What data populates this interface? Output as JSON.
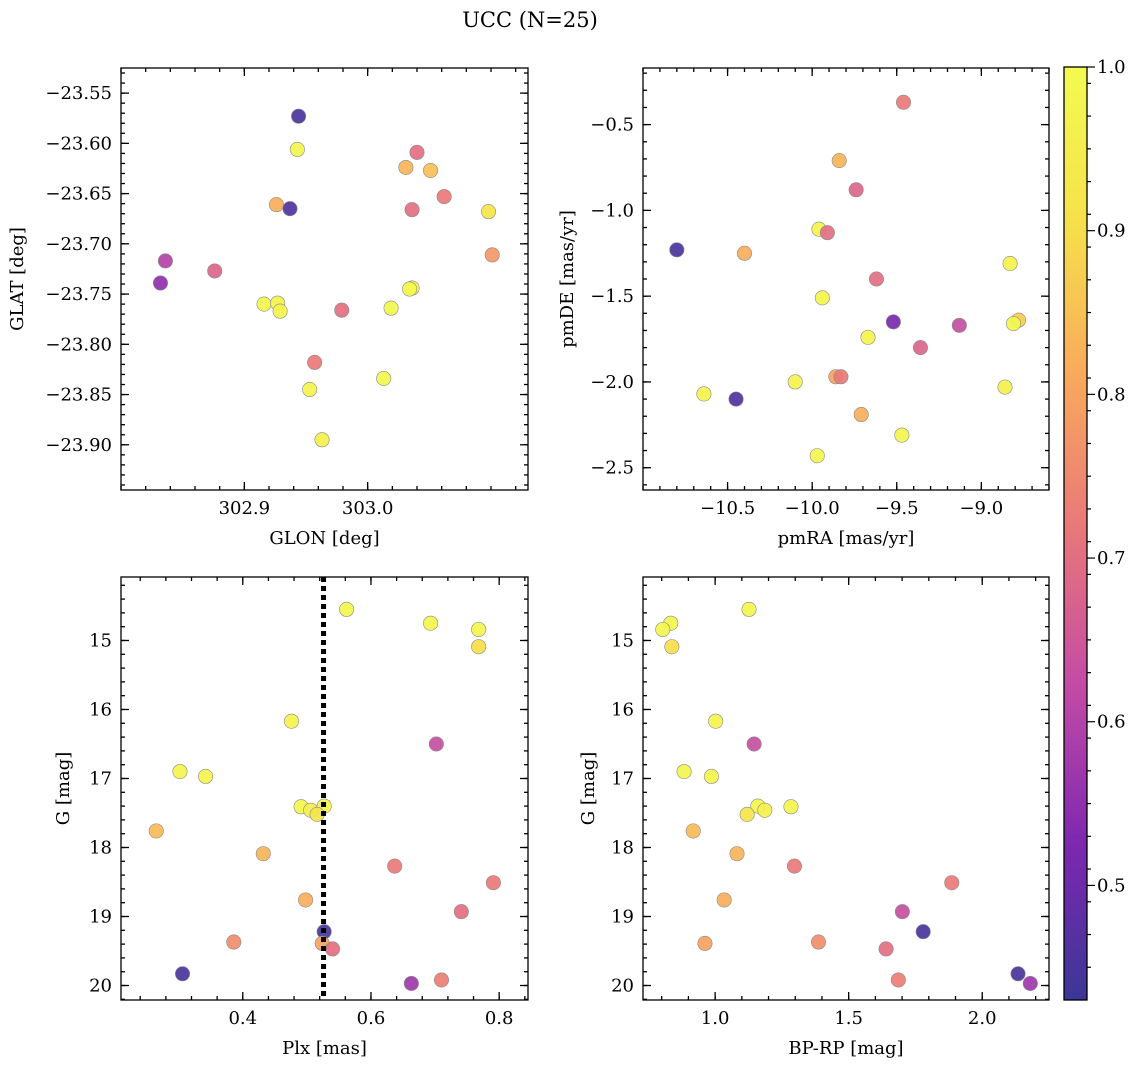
{
  "figure": {
    "title": "UCC (N=25)",
    "colorbar": {
      "cmap": "plasma",
      "vmin": 0.43,
      "vmax": 1.0,
      "ticks": [
        "0.5",
        "0.6",
        "0.7",
        "0.8",
        "0.9",
        "1.0"
      ],
      "colors": [
        "#3b3796",
        "#7d27b0",
        "#c24aa6",
        "#e8767a",
        "#f9a85d",
        "#f5e14a",
        "#f3fb4f"
      ]
    }
  },
  "chart_data": [
    {
      "type": "scatter",
      "xlabel": "GLON [deg]",
      "ylabel": "GLAT [deg]",
      "xlim": [
        302.8,
        303.13
      ],
      "ylim": [
        -23.945,
        -23.525
      ],
      "y_inverted": false,
      "xticks": [
        302.9,
        303.0
      ],
      "xtick_labels": [
        "302.9",
        "303.0"
      ],
      "yticks": [
        -23.55,
        -23.6,
        -23.65,
        -23.7,
        -23.75,
        -23.8,
        -23.85,
        -23.9
      ],
      "ytick_labels": [
        "−23.55",
        "−23.60",
        "−23.65",
        "−23.70",
        "−23.75",
        "−23.80",
        "−23.85",
        "−23.90"
      ],
      "points": [
        {
          "x": 302.944,
          "y": -23.573,
          "c": 0.45
        },
        {
          "x": 302.943,
          "y": -23.606,
          "c": 0.98
        },
        {
          "x": 303.04,
          "y": -23.609,
          "c": 0.7
        },
        {
          "x": 303.031,
          "y": -23.624,
          "c": 0.83
        },
        {
          "x": 303.051,
          "y": -23.627,
          "c": 0.85
        },
        {
          "x": 303.062,
          "y": -23.653,
          "c": 0.72
        },
        {
          "x": 302.926,
          "y": -23.661,
          "c": 0.82
        },
        {
          "x": 302.937,
          "y": -23.665,
          "c": 0.46
        },
        {
          "x": 303.036,
          "y": -23.666,
          "c": 0.7
        },
        {
          "x": 303.098,
          "y": -23.668,
          "c": 0.92
        },
        {
          "x": 303.101,
          "y": -23.711,
          "c": 0.78
        },
        {
          "x": 302.836,
          "y": -23.717,
          "c": 0.6
        },
        {
          "x": 302.876,
          "y": -23.727,
          "c": 0.68
        },
        {
          "x": 302.832,
          "y": -23.739,
          "c": 0.55
        },
        {
          "x": 303.036,
          "y": -23.744,
          "c": 0.97
        },
        {
          "x": 303.034,
          "y": -23.745,
          "c": 0.99
        },
        {
          "x": 302.916,
          "y": -23.76,
          "c": 0.98
        },
        {
          "x": 302.927,
          "y": -23.759,
          "c": 0.97
        },
        {
          "x": 302.929,
          "y": -23.767,
          "c": 0.97
        },
        {
          "x": 303.019,
          "y": -23.764,
          "c": 0.98
        },
        {
          "x": 302.979,
          "y": -23.766,
          "c": 0.7
        },
        {
          "x": 302.957,
          "y": -23.818,
          "c": 0.72
        },
        {
          "x": 302.953,
          "y": -23.845,
          "c": 0.97
        },
        {
          "x": 303.013,
          "y": -23.834,
          "c": 0.98
        },
        {
          "x": 302.963,
          "y": -23.895,
          "c": 0.96
        }
      ]
    },
    {
      "type": "scatter",
      "xlabel": "pmRA [mas/yr]",
      "ylabel": "pmDE [mas/yr]",
      "xlim": [
        -11.0,
        -8.6
      ],
      "ylim": [
        -2.63,
        -0.17
      ],
      "y_inverted": false,
      "xticks": [
        -10.5,
        -10.0,
        -9.5,
        -9.0
      ],
      "xtick_labels": [
        "−10.5",
        "−10.0",
        "−9.5",
        "−9.0"
      ],
      "yticks": [
        -2.5,
        -2.0,
        -1.5,
        -1.0,
        -0.5
      ],
      "ytick_labels": [
        "−2.5",
        "−2.0",
        "−1.5",
        "−1.0",
        "−0.5"
      ],
      "points": [
        {
          "x": -9.46,
          "y": -0.37,
          "c": 0.72
        },
        {
          "x": -9.84,
          "y": -0.71,
          "c": 0.83
        },
        {
          "x": -9.74,
          "y": -0.88,
          "c": 0.68
        },
        {
          "x": -9.96,
          "y": -1.11,
          "c": 0.97
        },
        {
          "x": -9.91,
          "y": -1.13,
          "c": 0.7
        },
        {
          "x": -10.8,
          "y": -1.23,
          "c": 0.45
        },
        {
          "x": -10.4,
          "y": -1.25,
          "c": 0.82
        },
        {
          "x": -8.83,
          "y": -1.31,
          "c": 0.97
        },
        {
          "x": -9.62,
          "y": -1.4,
          "c": 0.7
        },
        {
          "x": -9.94,
          "y": -1.51,
          "c": 0.98
        },
        {
          "x": -9.52,
          "y": -1.65,
          "c": 0.52
        },
        {
          "x": -9.13,
          "y": -1.67,
          "c": 0.63
        },
        {
          "x": -8.78,
          "y": -1.64,
          "c": 0.87
        },
        {
          "x": -8.81,
          "y": -1.66,
          "c": 0.98
        },
        {
          "x": -9.67,
          "y": -1.74,
          "c": 0.97
        },
        {
          "x": -9.36,
          "y": -1.8,
          "c": 0.68
        },
        {
          "x": -9.86,
          "y": -1.97,
          "c": 0.8
        },
        {
          "x": -9.83,
          "y": -1.97,
          "c": 0.72
        },
        {
          "x": -10.1,
          "y": -2.0,
          "c": 0.97
        },
        {
          "x": -8.86,
          "y": -2.03,
          "c": 0.96
        },
        {
          "x": -10.64,
          "y": -2.07,
          "c": 0.97
        },
        {
          "x": -10.45,
          "y": -2.1,
          "c": 0.46
        },
        {
          "x": -9.71,
          "y": -2.19,
          "c": 0.82
        },
        {
          "x": -9.47,
          "y": -2.31,
          "c": 0.98
        },
        {
          "x": -9.97,
          "y": -2.43,
          "c": 0.98
        }
      ]
    },
    {
      "type": "scatter",
      "xlabel": "Plx [mas]",
      "ylabel": "G [mag]",
      "xlim": [
        0.21,
        0.845
      ],
      "ylim": [
        20.21,
        14.08
      ],
      "y_inverted": true,
      "xticks": [
        0.4,
        0.6,
        0.8
      ],
      "xtick_labels": [
        "0.4",
        "0.6",
        "0.8"
      ],
      "yticks": [
        15,
        16,
        17,
        18,
        19,
        20
      ],
      "ytick_labels": [
        "15",
        "16",
        "17",
        "18",
        "19",
        "20"
      ],
      "vline": {
        "x": 0.526,
        "style": "dotted",
        "color": "#000000"
      },
      "points": [
        {
          "x": 0.562,
          "y": 14.55,
          "c": 0.98
        },
        {
          "x": 0.693,
          "y": 14.75,
          "c": 0.98
        },
        {
          "x": 0.768,
          "y": 14.84,
          "c": 0.98
        },
        {
          "x": 0.768,
          "y": 15.09,
          "c": 0.9
        },
        {
          "x": 0.476,
          "y": 16.17,
          "c": 0.97
        },
        {
          "x": 0.702,
          "y": 16.5,
          "c": 0.63
        },
        {
          "x": 0.302,
          "y": 16.9,
          "c": 0.98
        },
        {
          "x": 0.342,
          "y": 16.97,
          "c": 0.97
        },
        {
          "x": 0.491,
          "y": 17.41,
          "c": 0.98
        },
        {
          "x": 0.527,
          "y": 17.4,
          "c": 0.98
        },
        {
          "x": 0.506,
          "y": 17.46,
          "c": 0.96
        },
        {
          "x": 0.516,
          "y": 17.52,
          "c": 0.92
        },
        {
          "x": 0.265,
          "y": 17.76,
          "c": 0.84
        },
        {
          "x": 0.432,
          "y": 18.09,
          "c": 0.83
        },
        {
          "x": 0.637,
          "y": 18.27,
          "c": 0.72
        },
        {
          "x": 0.791,
          "y": 18.51,
          "c": 0.72
        },
        {
          "x": 0.498,
          "y": 18.76,
          "c": 0.82
        },
        {
          "x": 0.741,
          "y": 18.93,
          "c": 0.7
        },
        {
          "x": 0.527,
          "y": 19.22,
          "c": 0.45
        },
        {
          "x": 0.386,
          "y": 19.37,
          "c": 0.76
        },
        {
          "x": 0.524,
          "y": 19.39,
          "c": 0.8
        },
        {
          "x": 0.54,
          "y": 19.47,
          "c": 0.7
        },
        {
          "x": 0.306,
          "y": 19.83,
          "c": 0.45
        },
        {
          "x": 0.663,
          "y": 19.97,
          "c": 0.57
        },
        {
          "x": 0.71,
          "y": 19.92,
          "c": 0.73
        }
      ]
    },
    {
      "type": "scatter",
      "xlabel": "BP-RP [mag]",
      "ylabel": "G [mag]",
      "xlim": [
        0.73,
        2.25
      ],
      "ylim": [
        20.21,
        14.08
      ],
      "y_inverted": true,
      "xticks": [
        1.0,
        1.5,
        2.0
      ],
      "xtick_labels": [
        "1.0",
        "1.5",
        "2.0"
      ],
      "yticks": [
        15,
        16,
        17,
        18,
        19,
        20
      ],
      "ytick_labels": [
        "15",
        "16",
        "17",
        "18",
        "19",
        "20"
      ],
      "points": [
        {
          "x": 1.127,
          "y": 14.55,
          "c": 0.98
        },
        {
          "x": 0.834,
          "y": 14.75,
          "c": 0.98
        },
        {
          "x": 0.804,
          "y": 14.84,
          "c": 0.98
        },
        {
          "x": 0.838,
          "y": 15.09,
          "c": 0.9
        },
        {
          "x": 1.002,
          "y": 16.17,
          "c": 0.97
        },
        {
          "x": 1.146,
          "y": 16.5,
          "c": 0.63
        },
        {
          "x": 0.884,
          "y": 16.9,
          "c": 0.98
        },
        {
          "x": 0.986,
          "y": 16.97,
          "c": 0.97
        },
        {
          "x": 1.16,
          "y": 17.4,
          "c": 0.98
        },
        {
          "x": 1.284,
          "y": 17.41,
          "c": 0.98
        },
        {
          "x": 1.186,
          "y": 17.46,
          "c": 0.96
        },
        {
          "x": 1.12,
          "y": 17.52,
          "c": 0.92
        },
        {
          "x": 0.918,
          "y": 17.76,
          "c": 0.84
        },
        {
          "x": 1.082,
          "y": 18.09,
          "c": 0.83
        },
        {
          "x": 1.297,
          "y": 18.27,
          "c": 0.72
        },
        {
          "x": 1.886,
          "y": 18.51,
          "c": 0.72
        },
        {
          "x": 1.034,
          "y": 18.76,
          "c": 0.82
        },
        {
          "x": 1.701,
          "y": 18.93,
          "c": 0.63
        },
        {
          "x": 1.779,
          "y": 19.22,
          "c": 0.45
        },
        {
          "x": 0.962,
          "y": 19.39,
          "c": 0.8
        },
        {
          "x": 1.387,
          "y": 19.37,
          "c": 0.76
        },
        {
          "x": 1.64,
          "y": 19.47,
          "c": 0.7
        },
        {
          "x": 2.134,
          "y": 19.83,
          "c": 0.45
        },
        {
          "x": 2.18,
          "y": 19.97,
          "c": 0.57
        },
        {
          "x": 1.686,
          "y": 19.92,
          "c": 0.73
        }
      ]
    }
  ]
}
